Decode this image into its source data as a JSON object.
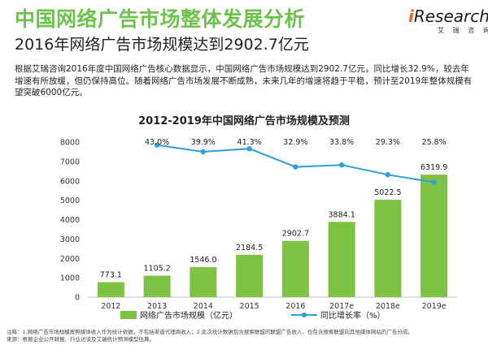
{
  "header": {
    "title": "中国网络广告市场整体发展分析",
    "subtitle": "2016年网络广告市场规模达到2902.7亿元"
  },
  "logo": {
    "word_i": "i",
    "word_rest": "Research",
    "cn": "艾 瑞 咨 询"
  },
  "body_text": "根据艾瑞咨询2016年度中国网络广告核心数据显示，中国网络广告市场规模达到2902.7亿元，同比增长32.9%，较去年增速有所放缓，但仍保持高位。随着网络广告市场发展不断成熟，未来几年的增速将趋于平稳，预计至2019年整体规模有望突破6000亿元。",
  "chart_data": {
    "type": "bar",
    "title": "2012-2019年中国网络广告市场规模及预测",
    "categories": [
      "2012",
      "2013",
      "2014",
      "2015",
      "2016",
      "2017e",
      "2018e",
      "2019e"
    ],
    "series": [
      {
        "name": "网络广告市场规模（亿元）",
        "type": "bar",
        "values": [
          773.1,
          1105.2,
          1546.0,
          2184.5,
          2902.7,
          3884.1,
          5022.5,
          6319.9
        ],
        "labels": [
          "773.1",
          "1105.2",
          "1546.0",
          "2184.5",
          "2902.7",
          "3884.1",
          "5022.5",
          "6319.9"
        ],
        "color": "#7dc242"
      },
      {
        "name": "同比增长率（%）",
        "type": "line",
        "values": [
          null,
          43.0,
          39.9,
          41.3,
          32.9,
          33.8,
          29.3,
          25.8
        ],
        "labels": [
          "",
          "43.0%",
          "39.9%",
          "41.3%",
          "32.9%",
          "33.8%",
          "29.3%",
          "25.8%"
        ],
        "color": "#2e9fd9"
      }
    ],
    "ylim": [
      0,
      8000
    ],
    "yticks": [
      "0",
      "1000",
      "2000",
      "3000",
      "4000",
      "5000",
      "6000",
      "7000",
      "8000"
    ],
    "grid": false,
    "legend": "bottom"
  },
  "notes": {
    "line1": "注释：1.网络广告市场规模按照媒体收入作为统计依据，不包括渠道代理商收入；2.此次统计数据包含搜索联盟的联盟广告收入，也包含搜索联盟向其他媒体网站的广告分成。",
    "line2": "来源：根据企业公开财报、行业访谈及艾瑞统计预测模型估算。"
  }
}
